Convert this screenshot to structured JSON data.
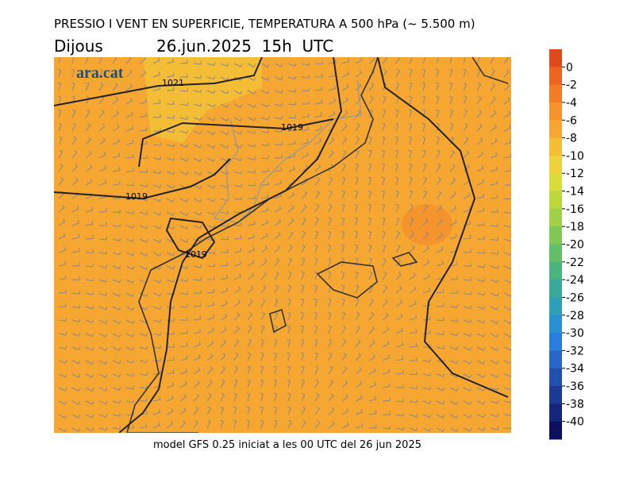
{
  "header": {
    "title": "PRESSIO I VENT EN SUPERFICIE, TEMPERATURA A 500 hPa (~ 5.500 m)",
    "day": "Dijous",
    "date": "26.jun.2025  15h  UTC"
  },
  "logo": "ara.cat",
  "isobar_labels": [
    "1021",
    "1019",
    "1019",
    "1019"
  ],
  "footer": "model GFS 0.25 iniciat a les 00 UTC del 26 jun 2025",
  "colorbar": {
    "ticks": [
      0,
      -2,
      -4,
      -6,
      -8,
      -10,
      -12,
      -14,
      -16,
      -18,
      -20,
      -22,
      -24,
      -26,
      -28,
      -30,
      -32,
      -34,
      -36,
      -38,
      -40
    ],
    "band_colors": [
      "#de4a1c",
      "#ec6420",
      "#f27c26",
      "#f5932c",
      "#f6a732",
      "#f4bd36",
      "#eed23a",
      "#d9dc3a",
      "#bcd73e",
      "#a0cf48",
      "#80c756",
      "#62be68",
      "#4bb47e",
      "#39aa9a",
      "#2f9fb6",
      "#2b90d2",
      "#297ddf",
      "#2767c9",
      "#2350ad",
      "#1c3a93",
      "#132679",
      "#0b0f5e"
    ]
  }
}
